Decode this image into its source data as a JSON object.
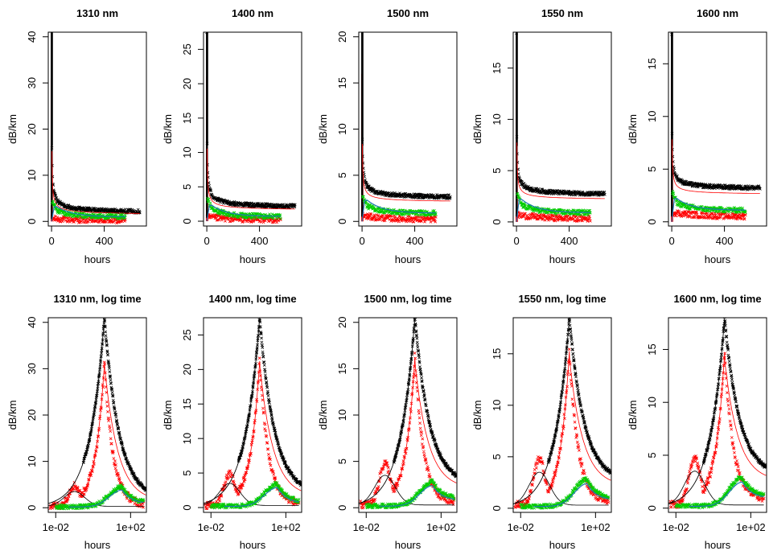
{
  "chart_data": [
    {
      "type": "scatter",
      "title": "1310 nm",
      "xlabel": "hours",
      "ylabel": "dB/km",
      "x_scale": "linear",
      "xlim": [
        -25,
        720
      ],
      "ylim": [
        -1,
        41
      ],
      "xticks": [
        0,
        400
      ],
      "xtick_labels": [
        "0",
        "400"
      ],
      "yticks": [
        0,
        10,
        20,
        30,
        40
      ],
      "ytick_labels": [
        "0",
        "10",
        "20",
        "30",
        "40"
      ],
      "peak": {
        "black": 41,
        "red": 31,
        "green": 4.5,
        "blue": 3.2
      },
      "end_level": {
        "black": 1.6,
        "red": 0.2,
        "green": 1.0,
        "blue": 1.0
      },
      "colors": {
        "black": "#000000",
        "red": "#ff0000",
        "green": "#00cc00",
        "blue": "#1f77b4"
      }
    },
    {
      "type": "scatter",
      "title": "1400 nm",
      "xlabel": "hours",
      "ylabel": "dB/km",
      "x_scale": "linear",
      "xlim": [
        -25,
        720
      ],
      "ylim": [
        -0.7,
        27.5
      ],
      "xticks": [
        0,
        400
      ],
      "xtick_labels": [
        "0",
        "400"
      ],
      "yticks": [
        0,
        5,
        10,
        15,
        20,
        25
      ],
      "ytick_labels": [
        "0",
        "5",
        "10",
        "15",
        "20",
        "25"
      ],
      "peak": {
        "black": 27.5,
        "red": 21,
        "green": 3.4,
        "blue": 2.3
      },
      "end_level": {
        "black": 1.8,
        "red": 0.2,
        "green": 0.7,
        "blue": 0.7
      },
      "colors": {
        "black": "#000000",
        "red": "#ff0000",
        "green": "#00cc00",
        "blue": "#1f77b4"
      }
    },
    {
      "type": "scatter",
      "title": "1500 nm",
      "xlabel": "hours",
      "ylabel": "dB/km",
      "x_scale": "linear",
      "xlim": [
        -25,
        720
      ],
      "ylim": [
        -0.5,
        20.5
      ],
      "xticks": [
        0,
        400
      ],
      "xtick_labels": [
        "0",
        "400"
      ],
      "yticks": [
        0,
        5,
        10,
        15,
        20
      ],
      "ytick_labels": [
        "0",
        "5",
        "10",
        "15",
        "20"
      ],
      "peak": {
        "black": 20.5,
        "red": 16,
        "green": 2.8,
        "blue": 2.3
      },
      "end_level": {
        "black": 2.4,
        "red": 0.2,
        "green": 0.9,
        "blue": 0.9
      },
      "colors": {
        "black": "#000000",
        "red": "#ff0000",
        "green": "#00cc00",
        "blue": "#1f77b4"
      }
    },
    {
      "type": "scatter",
      "title": "1550 nm",
      "xlabel": "hours",
      "ylabel": "dB/km",
      "x_scale": "linear",
      "xlim": [
        -25,
        720
      ],
      "ylim": [
        -0.4,
        18.5
      ],
      "xticks": [
        0,
        400
      ],
      "xtick_labels": [
        "0",
        "400"
      ],
      "yticks": [
        0,
        5,
        10,
        15
      ],
      "ytick_labels": [
        "0",
        "5",
        "10",
        "15"
      ],
      "peak": {
        "black": 18.5,
        "red": 15,
        "green": 2.8,
        "blue": 2.2
      },
      "end_level": {
        "black": 2.5,
        "red": 0.3,
        "green": 0.9,
        "blue": 0.9
      },
      "colors": {
        "black": "#000000",
        "red": "#ff0000",
        "green": "#00cc00",
        "blue": "#1f77b4"
      }
    },
    {
      "type": "scatter",
      "title": "1600 nm",
      "xlabel": "hours",
      "ylabel": "dB/km",
      "x_scale": "linear",
      "xlim": [
        -25,
        720
      ],
      "ylim": [
        -0.4,
        18
      ],
      "xticks": [
        0,
        400
      ],
      "xtick_labels": [
        "0",
        "400"
      ],
      "yticks": [
        0,
        5,
        10,
        15
      ],
      "ytick_labels": [
        "0",
        "5",
        "10",
        "15"
      ],
      "peak": {
        "black": 18,
        "red": 14.5,
        "green": 2.9,
        "blue": 2.2
      },
      "end_level": {
        "black": 3.0,
        "red": 0.5,
        "green": 1.1,
        "blue": 1.1
      },
      "colors": {
        "black": "#000000",
        "red": "#ff0000",
        "green": "#00cc00",
        "blue": "#1f77b4"
      }
    },
    {
      "type": "scatter",
      "title": "1310 nm, log time",
      "xlabel": "hours",
      "ylabel": "dB/km",
      "x_scale": "log",
      "xlim": [
        0.004,
        700
      ],
      "ylim": [
        -1,
        41
      ],
      "xticks": [
        0.01,
        100
      ],
      "xtick_labels": [
        "1e-02",
        "1e+02"
      ],
      "yticks": [
        0,
        10,
        20,
        30,
        40
      ],
      "ytick_labels": [
        "0",
        "10",
        "20",
        "30",
        "40"
      ],
      "peak_time": 4,
      "green_peak_time": 35,
      "peak": {
        "black": 41,
        "red": 31,
        "green": 4.5,
        "blue": 3.2
      },
      "end_level": {
        "black": 1.6,
        "red": 0.2,
        "green": 1.0,
        "blue": 1.0
      },
      "colors": {
        "black": "#000000",
        "red": "#ff0000",
        "green": "#00cc00",
        "blue": "#1f77b4"
      }
    },
    {
      "type": "scatter",
      "title": "1400 nm, log time",
      "xlabel": "hours",
      "ylabel": "dB/km",
      "x_scale": "log",
      "xlim": [
        0.004,
        700
      ],
      "ylim": [
        -0.7,
        27.5
      ],
      "xticks": [
        0.01,
        100
      ],
      "xtick_labels": [
        "1e-02",
        "1e+02"
      ],
      "yticks": [
        0,
        5,
        10,
        15,
        20,
        25
      ],
      "ytick_labels": [
        "0",
        "5",
        "10",
        "15",
        "20",
        "25"
      ],
      "peak_time": 4,
      "green_peak_time": 35,
      "peak": {
        "black": 27.5,
        "red": 21,
        "green": 3.4,
        "blue": 2.3
      },
      "end_level": {
        "black": 1.8,
        "red": 0.2,
        "green": 0.7,
        "blue": 0.7
      },
      "colors": {
        "black": "#000000",
        "red": "#ff0000",
        "green": "#00cc00",
        "blue": "#1f77b4"
      }
    },
    {
      "type": "scatter",
      "title": "1500 nm, log time",
      "xlabel": "hours",
      "ylabel": "dB/km",
      "x_scale": "log",
      "xlim": [
        0.004,
        700
      ],
      "ylim": [
        -0.5,
        20.5
      ],
      "xticks": [
        0.01,
        100
      ],
      "xtick_labels": [
        "1e-02",
        "1e+02"
      ],
      "yticks": [
        0,
        5,
        10,
        15,
        20
      ],
      "ytick_labels": [
        "0",
        "5",
        "10",
        "15",
        "20"
      ],
      "peak_time": 4,
      "green_peak_time": 35,
      "peak": {
        "black": 20.5,
        "red": 16,
        "green": 2.8,
        "blue": 2.3
      },
      "end_level": {
        "black": 2.4,
        "red": 0.2,
        "green": 0.9,
        "blue": 0.9
      },
      "colors": {
        "black": "#000000",
        "red": "#ff0000",
        "green": "#00cc00",
        "blue": "#1f77b4"
      }
    },
    {
      "type": "scatter",
      "title": "1550 nm, log time",
      "xlabel": "hours",
      "ylabel": "dB/km",
      "x_scale": "log",
      "xlim": [
        0.004,
        700
      ],
      "ylim": [
        -0.4,
        18.5
      ],
      "xticks": [
        0.01,
        100
      ],
      "xtick_labels": [
        "1e-02",
        "1e+02"
      ],
      "yticks": [
        0,
        5,
        10,
        15
      ],
      "ytick_labels": [
        "0",
        "5",
        "10",
        "15"
      ],
      "peak_time": 4,
      "green_peak_time": 35,
      "peak": {
        "black": 18.5,
        "red": 15,
        "green": 2.8,
        "blue": 2.2
      },
      "end_level": {
        "black": 2.5,
        "red": 0.3,
        "green": 0.9,
        "blue": 0.9
      },
      "colors": {
        "black": "#000000",
        "red": "#ff0000",
        "green": "#00cc00",
        "blue": "#1f77b4"
      }
    },
    {
      "type": "scatter",
      "title": "1600 nm, log time",
      "xlabel": "hours",
      "ylabel": "dB/km",
      "x_scale": "log",
      "xlim": [
        0.004,
        700
      ],
      "ylim": [
        -0.4,
        18
      ],
      "xticks": [
        0.01,
        100
      ],
      "xtick_labels": [
        "1e-02",
        "1e+02"
      ],
      "yticks": [
        0,
        5,
        10,
        15
      ],
      "ytick_labels": [
        "0",
        "5",
        "10",
        "15"
      ],
      "peak_time": 4,
      "green_peak_time": 35,
      "peak": {
        "black": 18,
        "red": 14.5,
        "green": 2.9,
        "blue": 2.2
      },
      "end_level": {
        "black": 3.0,
        "red": 0.5,
        "green": 1.1,
        "blue": 1.1
      },
      "colors": {
        "black": "#000000",
        "red": "#ff0000",
        "green": "#00cc00",
        "blue": "#1f77b4"
      }
    }
  ]
}
